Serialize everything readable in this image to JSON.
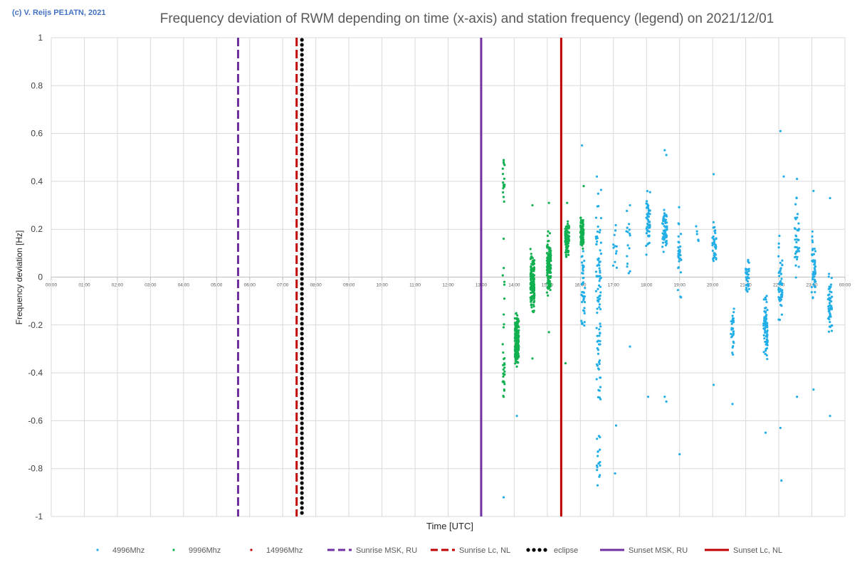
{
  "copyright": "(c) V. Reijs PE1ATN, 2021",
  "chart_data": {
    "type": "scatter",
    "title": "Frequency deviation of RWM depending on time (x-axis) and station frequency (legend) on 2021/12/01",
    "xlabel": "Time [UTC]",
    "ylabel": "Frequency deviation [Hz]",
    "xlim": [
      0,
      24
    ],
    "ylim": [
      -1,
      1
    ],
    "x_ticks": [
      "00:00",
      "01:00",
      "02:00",
      "03:00",
      "04:00",
      "05:00",
      "06:00",
      "07:00",
      "08:00",
      "09:00",
      "10:00",
      "11:00",
      "12:00",
      "13:00",
      "14:00",
      "15:00",
      "16:00",
      "17:00",
      "18:00",
      "19:00",
      "20:00",
      "21:00",
      "22:00",
      "23:00",
      "00:00"
    ],
    "y_ticks": [
      "1",
      "0.8",
      "0.6",
      "0.4",
      "0.2",
      "0",
      "-0.2",
      "-0.4",
      "-0.6",
      "-0.8",
      "-1"
    ],
    "colors": {
      "f4996": "#22aee6",
      "f9996": "#11b050",
      "f14996": "#c00000",
      "sunrise_msk": "#7030a0",
      "sunrise_nl": "#c00000",
      "eclipse": "#000000",
      "sunset_msk": "#7030a0",
      "sunset_nl": "#c00000"
    },
    "vertical_lines": [
      {
        "name": "Sunrise MSK, RU",
        "x": 5.65,
        "style": "dashed",
        "color": "#7030a0"
      },
      {
        "name": "Sunrise Lc, NL",
        "x": 7.42,
        "style": "dashed",
        "color": "#c00000"
      },
      {
        "name": "eclipse",
        "x": 7.58,
        "style": "dotted",
        "color": "#000000"
      },
      {
        "name": "Sunset MSK, RU",
        "x": 13.0,
        "style": "solid",
        "color": "#7030a0"
      },
      {
        "name": "Sunset Lc, NL",
        "x": 15.42,
        "style": "solid",
        "color": "#c00000"
      }
    ],
    "series": [
      {
        "name": "4996Mhz",
        "color": "#22aee6",
        "clusters": [
          {
            "x": 16.08,
            "center": -0.05,
            "spread": 0.15,
            "n": 45,
            "dx": 0.06
          },
          {
            "x": 16.55,
            "center": 0.06,
            "spread": 0.22,
            "n": 55,
            "dx": 0.08
          },
          {
            "x": 16.55,
            "center": -0.35,
            "spread": 0.25,
            "n": 35,
            "dx": 0.06
          },
          {
            "x": 16.55,
            "center": -0.75,
            "spread": 0.08,
            "n": 15,
            "dx": 0.05
          },
          {
            "x": 17.05,
            "center": 0.15,
            "spread": 0.08,
            "n": 12,
            "dx": 0.06
          },
          {
            "x": 17.45,
            "center": 0.15,
            "spread": 0.1,
            "n": 15,
            "dx": 0.06
          },
          {
            "x": 18.05,
            "center": 0.23,
            "spread": 0.1,
            "n": 55,
            "dx": 0.06
          },
          {
            "x": 18.55,
            "center": 0.2,
            "spread": 0.08,
            "n": 55,
            "dx": 0.07
          },
          {
            "x": 19.0,
            "center": 0.1,
            "spread": 0.12,
            "n": 30,
            "dx": 0.05
          },
          {
            "x": 19.55,
            "center": 0.15,
            "spread": 0.06,
            "n": 6,
            "dx": 0.05
          },
          {
            "x": 20.05,
            "center": 0.15,
            "spread": 0.08,
            "n": 35,
            "dx": 0.06
          },
          {
            "x": 20.6,
            "center": -0.22,
            "spread": 0.08,
            "n": 30,
            "dx": 0.05
          },
          {
            "x": 21.05,
            "center": 0.0,
            "spread": 0.06,
            "n": 35,
            "dx": 0.05
          },
          {
            "x": 21.6,
            "center": -0.22,
            "spread": 0.1,
            "n": 70,
            "dx": 0.06
          },
          {
            "x": 22.05,
            "center": -0.05,
            "spread": 0.15,
            "n": 50,
            "dx": 0.06
          },
          {
            "x": 22.55,
            "center": 0.15,
            "spread": 0.12,
            "n": 40,
            "dx": 0.07
          },
          {
            "x": 23.05,
            "center": 0.05,
            "spread": 0.12,
            "n": 50,
            "dx": 0.06
          },
          {
            "x": 23.55,
            "center": -0.12,
            "spread": 0.1,
            "n": 50,
            "dx": 0.06
          }
        ],
        "outliers": [
          [
            13.68,
            -0.92
          ],
          [
            14.08,
            -0.58
          ],
          [
            16.05,
            0.55
          ],
          [
            16.5,
            0.42
          ],
          [
            16.52,
            -0.87
          ],
          [
            17.05,
            -0.82
          ],
          [
            17.08,
            -0.62
          ],
          [
            17.5,
            0.3
          ],
          [
            17.5,
            -0.29
          ],
          [
            18.05,
            -0.5
          ],
          [
            18.55,
            0.53
          ],
          [
            18.6,
            0.51
          ],
          [
            18.55,
            -0.5
          ],
          [
            18.6,
            -0.52
          ],
          [
            19.0,
            -0.74
          ],
          [
            20.03,
            0.43
          ],
          [
            20.03,
            -0.45
          ],
          [
            20.6,
            -0.53
          ],
          [
            21.6,
            -0.65
          ],
          [
            22.05,
            0.61
          ],
          [
            22.08,
            -0.85
          ],
          [
            22.05,
            -0.63
          ],
          [
            22.15,
            0.42
          ],
          [
            22.55,
            0.41
          ],
          [
            22.55,
            -0.5
          ],
          [
            23.05,
            0.36
          ],
          [
            23.05,
            -0.47
          ],
          [
            23.55,
            -0.58
          ],
          [
            23.55,
            0.33
          ]
        ]
      },
      {
        "name": "9996Mhz",
        "color": "#11b050",
        "clusters": [
          {
            "x": 13.68,
            "center": 0.4,
            "spread": 0.06,
            "n": 15,
            "dx": 0.03
          },
          {
            "x": 13.68,
            "center": -0.4,
            "spread": 0.08,
            "n": 25,
            "dx": 0.03
          },
          {
            "x": 13.68,
            "center": -0.1,
            "spread": 0.15,
            "n": 8,
            "dx": 0.03
          },
          {
            "x": 14.08,
            "center": -0.26,
            "spread": 0.08,
            "n": 200,
            "dx": 0.06
          },
          {
            "x": 14.55,
            "center": -0.02,
            "spread": 0.1,
            "n": 150,
            "dx": 0.06
          },
          {
            "x": 15.05,
            "center": 0.05,
            "spread": 0.08,
            "n": 150,
            "dx": 0.06
          },
          {
            "x": 15.6,
            "center": 0.16,
            "spread": 0.05,
            "n": 120,
            "dx": 0.06
          },
          {
            "x": 16.05,
            "center": 0.19,
            "spread": 0.05,
            "n": 90,
            "dx": 0.05
          }
        ],
        "outliers": [
          [
            13.68,
            0.48
          ],
          [
            13.68,
            -0.5
          ],
          [
            13.68,
            0.16
          ],
          [
            14.55,
            0.3
          ],
          [
            14.55,
            -0.34
          ],
          [
            15.05,
            0.31
          ],
          [
            15.05,
            -0.23
          ],
          [
            15.6,
            0.31
          ],
          [
            15.55,
            -0.36
          ],
          [
            16.1,
            0.38
          ]
        ]
      },
      {
        "name": "14996Mhz",
        "color": "#c00000",
        "clusters": [],
        "outliers": []
      }
    ],
    "legend": [
      {
        "label": "4996Mhz",
        "kind": "marker",
        "color": "#22aee6"
      },
      {
        "label": "9996Mhz",
        "kind": "marker",
        "color": "#11b050"
      },
      {
        "label": "14996Mhz",
        "kind": "marker",
        "color": "#c00000"
      },
      {
        "label": "Sunrise MSK, RU",
        "kind": "dashed",
        "color": "#7030a0"
      },
      {
        "label": "Sunrise Lc, NL",
        "kind": "dashed",
        "color": "#c00000"
      },
      {
        "label": "eclipse",
        "kind": "dotted",
        "color": "#000000"
      },
      {
        "label": "Sunset MSK, RU",
        "kind": "solid",
        "color": "#7030a0"
      },
      {
        "label": "Sunset Lc, NL",
        "kind": "solid",
        "color": "#c00000"
      }
    ],
    "legend_position": "bottom",
    "grid": true
  }
}
